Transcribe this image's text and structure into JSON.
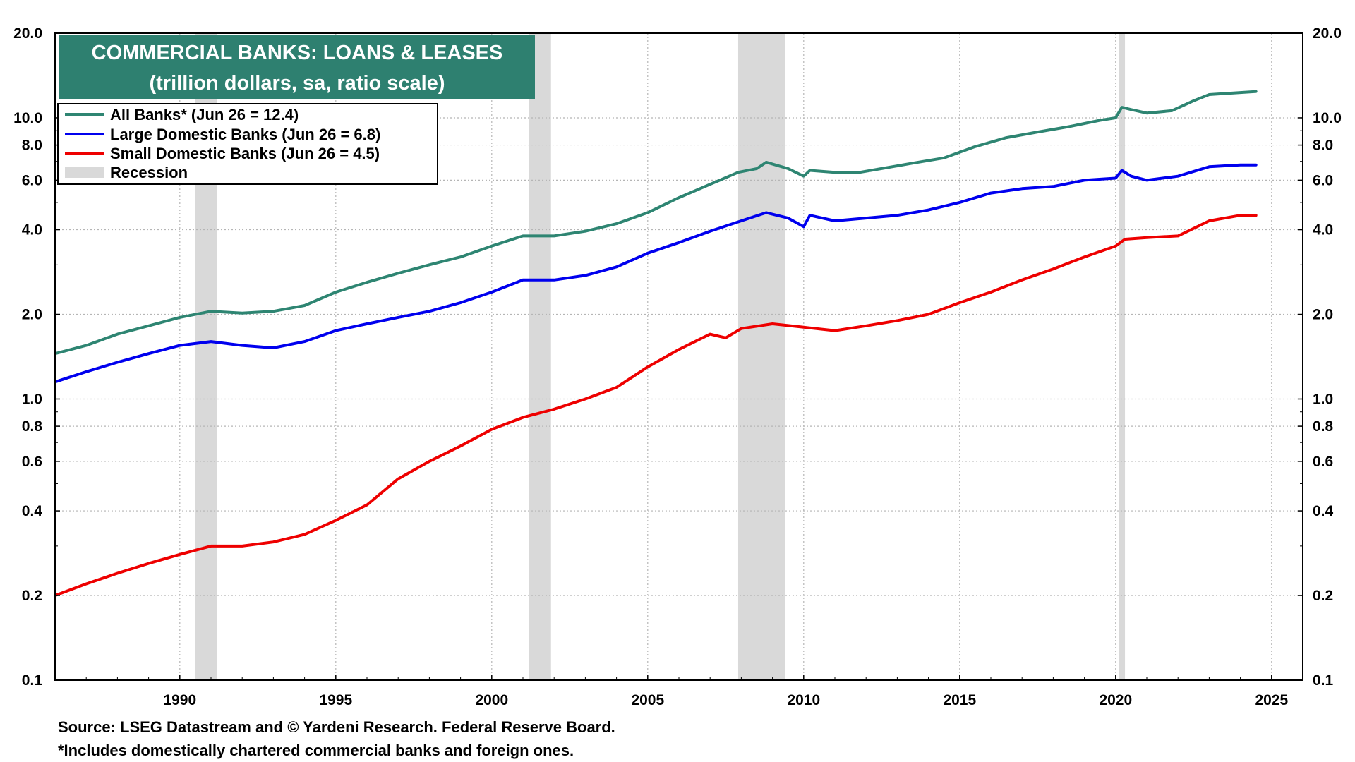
{
  "chart_data": {
    "type": "line",
    "title": "COMMERCIAL BANKS: LOANS & LEASES",
    "subtitle": "(trillion dollars, sa, ratio scale)",
    "y_scale": "log",
    "ylim": [
      0.1,
      20.0
    ],
    "xlim": [
      1986.0,
      2026.0
    ],
    "y_ticks": [
      "20.0",
      "10.0",
      "8.0",
      "6.0",
      "4.0",
      "2.0",
      "1.0",
      "0.8",
      "0.6",
      "0.4",
      "0.2",
      "0.1"
    ],
    "y_tick_values": [
      20.0,
      10.0,
      8.0,
      6.0,
      4.0,
      2.0,
      1.0,
      0.8,
      0.6,
      0.4,
      0.2,
      0.1
    ],
    "x_ticks": [
      "1990",
      "1995",
      "2000",
      "2005",
      "2010",
      "2015",
      "2020",
      "2025"
    ],
    "x_tick_values": [
      1990,
      1995,
      2000,
      2005,
      2010,
      2015,
      2020,
      2025
    ],
    "grid": true,
    "legend_position": "top-left",
    "recessions": [
      [
        1990.5,
        1991.2
      ],
      [
        2001.2,
        2001.9
      ],
      [
        2007.9,
        2009.4
      ],
      [
        2020.1,
        2020.3
      ]
    ],
    "recession_color": "#d9d9d9",
    "recession_label": "Recession",
    "series": [
      {
        "name": "All Banks* (Jun 26 = 12.4)",
        "color": "#2e8572",
        "x": [
          1986.0,
          1987.0,
          1988.0,
          1989.0,
          1990.0,
          1991.0,
          1992.0,
          1993.0,
          1994.0,
          1995.0,
          1996.0,
          1997.0,
          1998.0,
          1999.0,
          2000.0,
          2001.0,
          2002.0,
          2003.0,
          2004.0,
          2005.0,
          2006.0,
          2007.0,
          2007.9,
          2008.5,
          2008.8,
          2009.5,
          2010.0,
          2010.2,
          2011.0,
          2011.8,
          2012.5,
          2013.5,
          2014.5,
          2015.5,
          2016.5,
          2017.5,
          2018.5,
          2019.5,
          2020.0,
          2020.2,
          2020.5,
          2021.0,
          2021.8,
          2022.5,
          2023.0,
          2024.0,
          2024.5
        ],
        "values": [
          1.45,
          1.55,
          1.7,
          1.82,
          1.95,
          2.05,
          2.02,
          2.05,
          2.15,
          2.4,
          2.6,
          2.8,
          3.0,
          3.2,
          3.5,
          3.8,
          3.8,
          3.95,
          4.2,
          4.6,
          5.2,
          5.8,
          6.4,
          6.6,
          6.95,
          6.6,
          6.2,
          6.5,
          6.4,
          6.4,
          6.6,
          6.9,
          7.2,
          7.9,
          8.5,
          8.9,
          9.3,
          9.8,
          10.0,
          10.9,
          10.7,
          10.4,
          10.6,
          11.5,
          12.1,
          12.3,
          12.4
        ]
      },
      {
        "name": "Large Domestic Banks (Jun 26 = 6.8)",
        "color": "#0000ee",
        "x": [
          1986.0,
          1987.0,
          1988.0,
          1989.0,
          1990.0,
          1991.0,
          1992.0,
          1993.0,
          1994.0,
          1995.0,
          1996.0,
          1997.0,
          1998.0,
          1999.0,
          2000.0,
          2001.0,
          2002.0,
          2003.0,
          2004.0,
          2005.0,
          2006.0,
          2007.0,
          2008.0,
          2008.8,
          2009.5,
          2010.0,
          2010.2,
          2011.0,
          2012.0,
          2013.0,
          2014.0,
          2015.0,
          2016.0,
          2017.0,
          2018.0,
          2019.0,
          2020.0,
          2020.2,
          2020.5,
          2021.0,
          2022.0,
          2023.0,
          2024.0,
          2024.5
        ],
        "values": [
          1.15,
          1.25,
          1.35,
          1.45,
          1.55,
          1.6,
          1.55,
          1.52,
          1.6,
          1.75,
          1.85,
          1.95,
          2.05,
          2.2,
          2.4,
          2.65,
          2.65,
          2.75,
          2.95,
          3.3,
          3.6,
          3.95,
          4.3,
          4.6,
          4.4,
          4.1,
          4.5,
          4.3,
          4.4,
          4.5,
          4.7,
          5.0,
          5.4,
          5.6,
          5.7,
          6.0,
          6.1,
          6.5,
          6.2,
          6.0,
          6.2,
          6.7,
          6.8,
          6.8
        ]
      },
      {
        "name": "Small Domestic Banks (Jun 26 = 4.5)",
        "color": "#ee0000",
        "x": [
          1986.0,
          1987.0,
          1988.0,
          1989.0,
          1990.0,
          1991.0,
          1992.0,
          1993.0,
          1994.0,
          1995.0,
          1996.0,
          1997.0,
          1998.0,
          1999.0,
          2000.0,
          2001.0,
          2002.0,
          2003.0,
          2004.0,
          2005.0,
          2006.0,
          2007.0,
          2007.5,
          2008.0,
          2009.0,
          2010.0,
          2011.0,
          2012.0,
          2013.0,
          2014.0,
          2015.0,
          2016.0,
          2017.0,
          2018.0,
          2019.0,
          2020.0,
          2020.3,
          2021.0,
          2022.0,
          2023.0,
          2024.0,
          2024.5
        ],
        "values": [
          0.2,
          0.22,
          0.24,
          0.26,
          0.28,
          0.3,
          0.3,
          0.31,
          0.33,
          0.37,
          0.42,
          0.52,
          0.6,
          0.68,
          0.78,
          0.86,
          0.92,
          1.0,
          1.1,
          1.3,
          1.5,
          1.7,
          1.65,
          1.78,
          1.85,
          1.8,
          1.75,
          1.82,
          1.9,
          2.0,
          2.2,
          2.4,
          2.65,
          2.9,
          3.2,
          3.5,
          3.7,
          3.75,
          3.8,
          4.3,
          4.5,
          4.5
        ]
      }
    ]
  },
  "footer": {
    "source": "Source: LSEG Datastream and © Yardeni Research. Federal Reserve Board.",
    "note": "*Includes domestically chartered commercial banks and foreign ones."
  }
}
